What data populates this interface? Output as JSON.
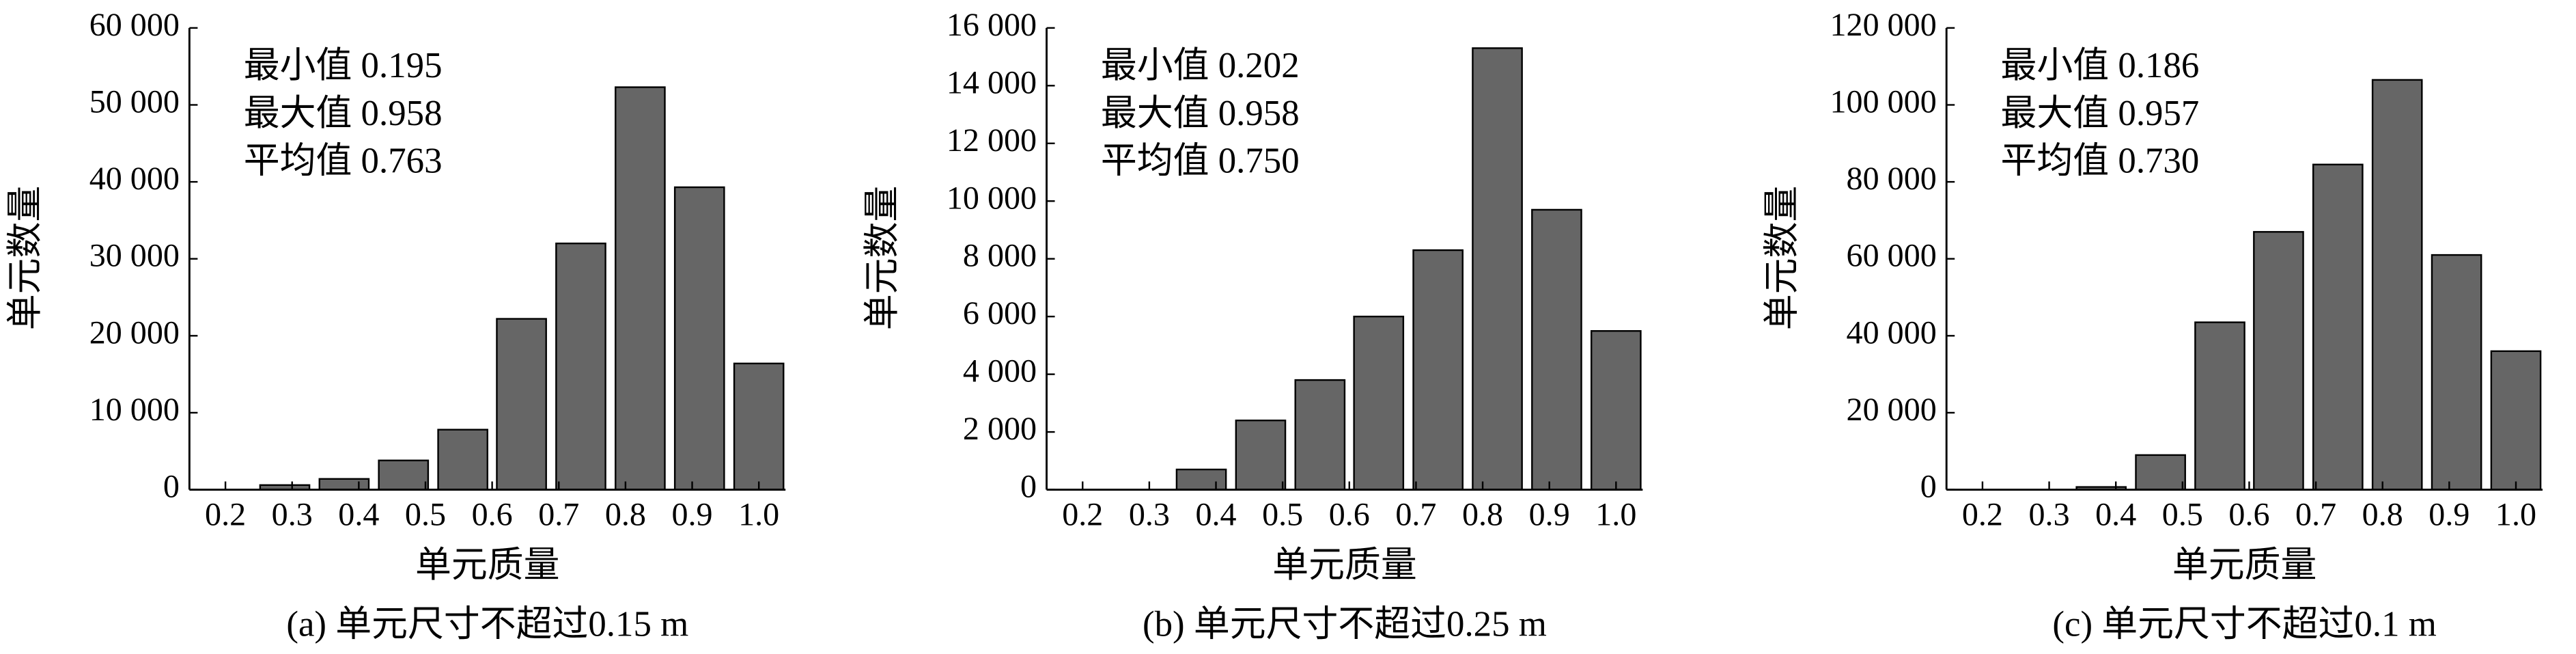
{
  "chart_data": [
    {
      "type": "bar",
      "caption": "(a) 单元尺寸不超过0.15 m",
      "xlabel": "单元质量",
      "ylabel": "单元数量",
      "annotations": [
        "最小值 0.195",
        "最大值 0.958",
        "平均值 0.763"
      ],
      "color": "#666666",
      "x": [
        0.2,
        0.289,
        0.378,
        0.467,
        0.556,
        0.644,
        0.733,
        0.822,
        0.911,
        1.0
      ],
      "values": [
        0,
        600,
        1400,
        3800,
        7800,
        22200,
        32000,
        52300,
        39300,
        16400
      ],
      "xlim": [
        0.146,
        1.04
      ],
      "xticks": [
        0.2,
        0.3,
        0.4,
        0.5,
        0.6,
        0.7,
        0.8,
        0.9,
        {
          "value": 1,
          "label": "1.0"
        }
      ],
      "ylim": [
        0,
        60000
      ],
      "yticks": [
        0,
        {
          "value": 10000,
          "label": "10 000"
        },
        {
          "value": 20000,
          "label": "20 000"
        },
        {
          "value": 30000,
          "label": "30 000"
        },
        {
          "value": 40000,
          "label": "40 000"
        },
        {
          "value": 50000,
          "label": "50 000"
        },
        {
          "value": 60000,
          "label": "60 000"
        }
      ]
    },
    {
      "type": "bar",
      "caption": "(b) 单元尺寸不超过0.25 m",
      "xlabel": "单元质量",
      "ylabel": "单元数量",
      "annotations": [
        "最小值 0.202",
        "最大值 0.958",
        "平均值 0.750"
      ],
      "color": "#666666",
      "x": [
        0.2,
        0.289,
        0.378,
        0.467,
        0.556,
        0.644,
        0.733,
        0.822,
        0.911,
        1.0
      ],
      "values": [
        0,
        0,
        700,
        2400,
        3800,
        6000,
        8300,
        15300,
        9700,
        5500
      ],
      "xlim": [
        0.146,
        1.04
      ],
      "xticks": [
        0.2,
        0.3,
        0.4,
        0.5,
        0.6,
        0.7,
        0.8,
        0.9,
        {
          "value": 1,
          "label": "1.0"
        }
      ],
      "ylim": [
        0,
        16000
      ],
      "yticks": [
        0,
        {
          "value": 2000,
          "label": "2 000"
        },
        {
          "value": 4000,
          "label": "4 000"
        },
        {
          "value": 6000,
          "label": "6 000"
        },
        {
          "value": 8000,
          "label": "8 000"
        },
        {
          "value": 10000,
          "label": "10 000"
        },
        {
          "value": 12000,
          "label": "12 000"
        },
        {
          "value": 14000,
          "label": "14 000"
        },
        {
          "value": 16000,
          "label": "16 000"
        }
      ]
    },
    {
      "type": "bar",
      "caption": "(c) 单元尺寸不超过0.1 m",
      "xlabel": "单元质量",
      "ylabel": "单元数量",
      "annotations": [
        "最小值 0.186",
        "最大值 0.957",
        "平均值 0.730"
      ],
      "color": "#666666",
      "x": [
        0.2,
        0.289,
        0.378,
        0.467,
        0.556,
        0.644,
        0.733,
        0.822,
        0.911,
        1.0
      ],
      "values": [
        0,
        0,
        700,
        9000,
        43500,
        67000,
        84500,
        106500,
        61000,
        36000
      ],
      "xlim": [
        0.146,
        1.04
      ],
      "xticks": [
        0.2,
        0.3,
        0.4,
        0.5,
        0.6,
        0.7,
        0.8,
        0.9,
        {
          "value": 1,
          "label": "1.0"
        }
      ],
      "ylim": [
        0,
        120000
      ],
      "yticks": [
        0,
        {
          "value": 20000,
          "label": "20 000"
        },
        {
          "value": 40000,
          "label": "40 000"
        },
        {
          "value": 60000,
          "label": "60 000"
        },
        {
          "value": 80000,
          "label": "80 000"
        },
        {
          "value": 100000,
          "label": "100 000"
        },
        {
          "value": 120000,
          "label": "120 000"
        }
      ]
    }
  ]
}
